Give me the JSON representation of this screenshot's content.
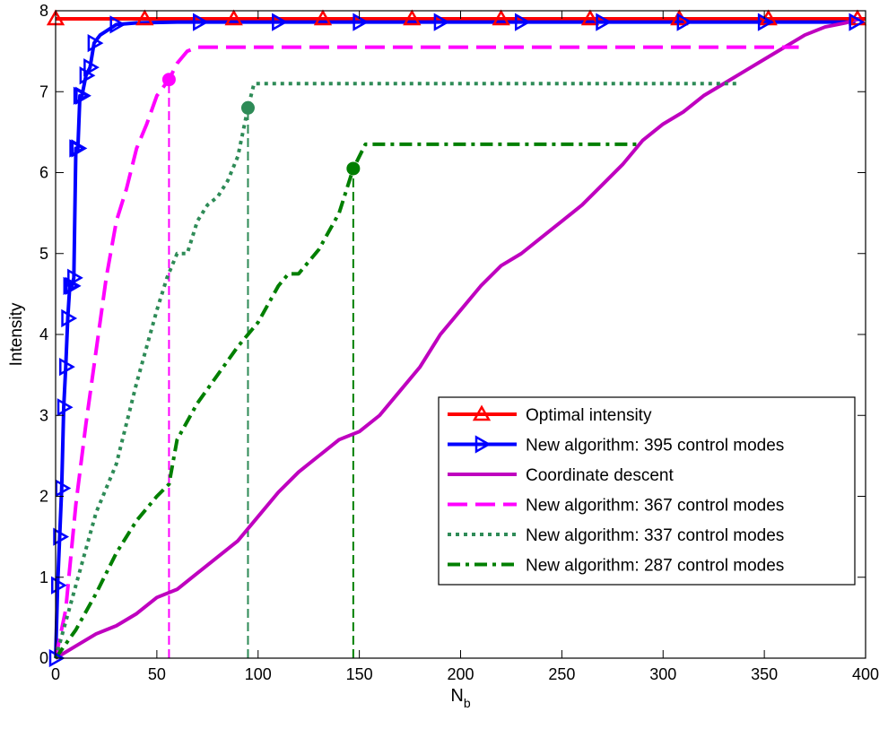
{
  "chart_data": {
    "type": "line",
    "title": "",
    "xlabel": "N",
    "xlabel_subscript": "b",
    "ylabel": "Intensity",
    "xlim": [
      0,
      400
    ],
    "ylim": [
      0,
      8
    ],
    "xticks": [
      0,
      50,
      100,
      150,
      200,
      250,
      300,
      350,
      400
    ],
    "yticks": [
      0,
      1,
      2,
      3,
      4,
      5,
      6,
      7,
      8
    ],
    "grid": false,
    "legend_position": "bottom-right",
    "series": [
      {
        "name": "Optimal intensity",
        "color": "#ff0000",
        "style": "solid",
        "marker": "triangle-up",
        "x": [
          0,
          400
        ],
        "y": [
          7.9,
          7.9
        ],
        "marker_x": [
          0,
          44,
          88,
          132,
          176,
          220,
          264,
          308,
          352,
          396
        ]
      },
      {
        "name": "New algorithm: 395 control modes",
        "color": "#0000ff",
        "style": "solid",
        "marker": "triangle-right",
        "x": [
          0,
          1,
          2,
          3,
          4,
          5,
          6,
          7,
          8,
          9,
          10,
          11,
          12,
          13,
          15,
          17,
          19,
          22,
          30,
          40,
          60,
          100,
          200,
          300,
          395
        ],
        "y": [
          0,
          0.9,
          1.5,
          2.1,
          3.1,
          3.6,
          4.2,
          4.6,
          4.6,
          4.7,
          6.3,
          6.3,
          6.95,
          6.95,
          7.2,
          7.3,
          7.6,
          7.7,
          7.83,
          7.85,
          7.86,
          7.86,
          7.86,
          7.86,
          7.86
        ],
        "marker_x": [
          0,
          1,
          2,
          3,
          4,
          5,
          6,
          7,
          8,
          9,
          10,
          11,
          12,
          13,
          15,
          17,
          19,
          30,
          71,
          110,
          150,
          190,
          230,
          270,
          310,
          350,
          395
        ]
      },
      {
        "name": "Coordinate descent",
        "color": "#bf00bf",
        "style": "solid",
        "marker": "none",
        "x": [
          0,
          10,
          20,
          30,
          40,
          50,
          60,
          70,
          80,
          90,
          100,
          110,
          120,
          130,
          140,
          150,
          160,
          170,
          180,
          190,
          200,
          210,
          220,
          230,
          240,
          250,
          260,
          270,
          280,
          290,
          300,
          310,
          320,
          330,
          340,
          350,
          360,
          370,
          380,
          390,
          397
        ],
        "y": [
          0,
          0.15,
          0.3,
          0.4,
          0.55,
          0.75,
          0.85,
          1.05,
          1.25,
          1.45,
          1.75,
          2.05,
          2.3,
          2.5,
          2.7,
          2.8,
          3.0,
          3.3,
          3.6,
          4.0,
          4.3,
          4.6,
          4.85,
          5.0,
          5.2,
          5.4,
          5.6,
          5.85,
          6.1,
          6.4,
          6.6,
          6.75,
          6.95,
          7.1,
          7.25,
          7.4,
          7.55,
          7.7,
          7.8,
          7.85,
          7.9
        ]
      },
      {
        "name": "New algorithm: 367 control modes",
        "color": "#ff00ff",
        "style": "dashed",
        "marker": "none",
        "x": [
          0,
          5,
          10,
          15,
          20,
          25,
          30,
          35,
          40,
          45,
          50,
          56,
          60,
          65,
          70,
          100,
          200,
          300,
          367
        ],
        "y": [
          0,
          0.6,
          1.9,
          2.9,
          3.8,
          4.7,
          5.4,
          5.8,
          6.3,
          6.6,
          6.95,
          7.15,
          7.35,
          7.5,
          7.55,
          7.55,
          7.55,
          7.55,
          7.55
        ],
        "stop_marker": [
          56,
          7.15
        ],
        "drop_line_x": 56
      },
      {
        "name": "New algorithm: 337 control modes",
        "color": "#2e8b57",
        "style": "dotted",
        "marker": "none",
        "x": [
          0,
          10,
          20,
          30,
          40,
          50,
          55,
          60,
          65,
          70,
          75,
          80,
          85,
          90,
          95,
          98,
          100,
          200,
          300,
          337
        ],
        "y": [
          0,
          0.9,
          1.8,
          2.4,
          3.4,
          4.3,
          4.7,
          5.0,
          5.0,
          5.4,
          5.6,
          5.7,
          5.9,
          6.2,
          6.8,
          7.1,
          7.1,
          7.1,
          7.1,
          7.1
        ],
        "stop_marker": [
          95,
          6.8
        ],
        "drop_line_x": 95
      },
      {
        "name": "New algorithm: 287 control modes",
        "color": "#007f00",
        "style": "dashdot",
        "marker": "none",
        "x": [
          0,
          10,
          20,
          30,
          40,
          50,
          56,
          60,
          70,
          80,
          90,
          95,
          100,
          110,
          115,
          120,
          130,
          140,
          147,
          150,
          153,
          200,
          250,
          287
        ],
        "y": [
          0,
          0.35,
          0.8,
          1.3,
          1.7,
          2.0,
          2.15,
          2.7,
          3.15,
          3.5,
          3.85,
          4.0,
          4.15,
          4.6,
          4.75,
          4.75,
          5.05,
          5.5,
          6.05,
          6.2,
          6.35,
          6.35,
          6.35,
          6.35
        ],
        "stop_marker": [
          147,
          6.05
        ],
        "drop_line_x": 147
      }
    ]
  }
}
